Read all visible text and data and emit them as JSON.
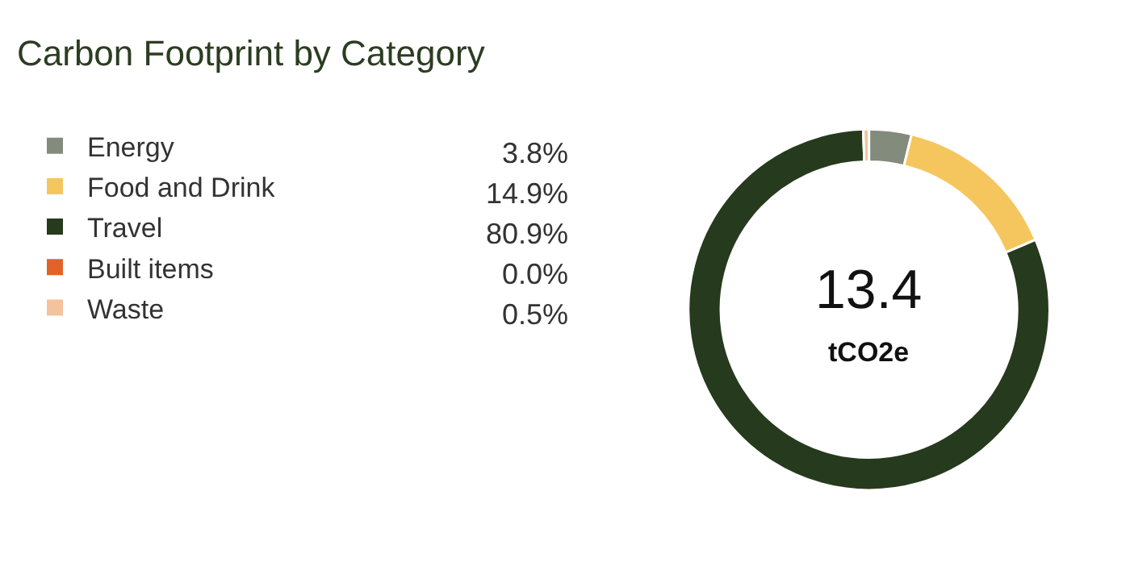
{
  "chart_data": {
    "type": "donut",
    "title": "Carbon Footprint by Category",
    "categories": [
      "Energy",
      "Food and Drink",
      "Travel",
      "Built items",
      "Waste"
    ],
    "values": [
      3.8,
      14.9,
      80.9,
      0.0,
      0.5
    ],
    "colors": [
      "#838b7c",
      "#f6c65e",
      "#263a1d",
      "#e3622a",
      "#f4c39c"
    ],
    "value_labels": [
      "3.8%",
      "14.9%",
      "80.9%",
      "0.0%",
      "0.5%"
    ],
    "annotations": [
      "13.4",
      "tCO2e"
    ],
    "legend": "left"
  }
}
